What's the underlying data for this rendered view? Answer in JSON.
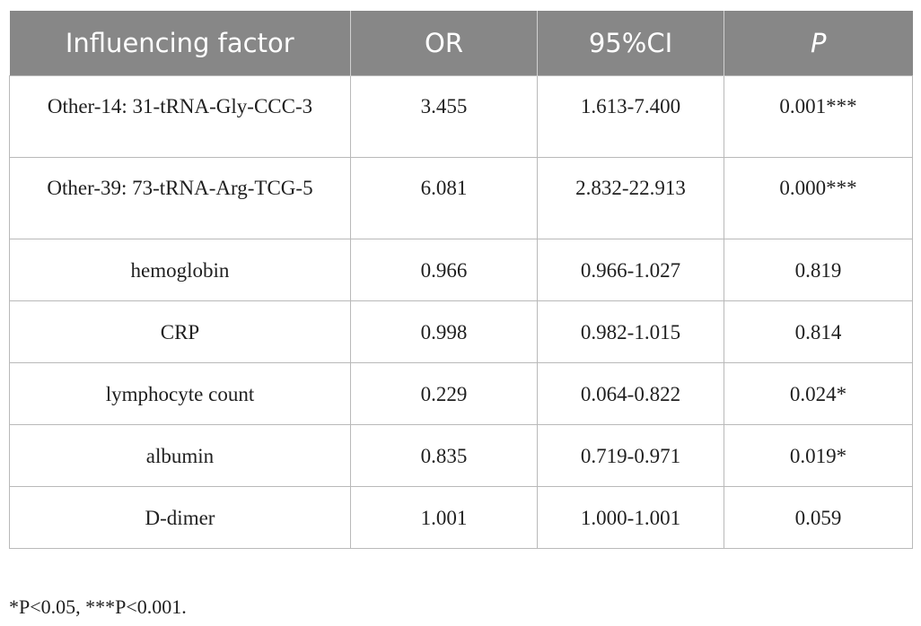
{
  "table": {
    "headers": [
      "Influencing factor",
      "OR",
      "95%CI",
      "P"
    ],
    "rows": [
      {
        "factor": "Other-14: 31-tRNA-Gly-CCC-3",
        "or": "3.455",
        "ci": "1.613-7.400",
        "p": "0.001***"
      },
      {
        "factor": "Other-39: 73-tRNA-Arg-TCG-5",
        "or": "6.081",
        "ci": "2.832-22.913",
        "p": "0.000***"
      },
      {
        "factor": "hemoglobin",
        "or": "0.966",
        "ci": "0.966-1.027",
        "p": "0.819"
      },
      {
        "factor": "CRP",
        "or": "0.998",
        "ci": "0.982-1.015",
        "p": "0.814"
      },
      {
        "factor": "lymphocyte count",
        "or": "0.229",
        "ci": "0.064-0.822",
        "p": "0.024*"
      },
      {
        "factor": "albumin",
        "or": "0.835",
        "ci": "0.719-0.971",
        "p": "0.019*"
      },
      {
        "factor": "D-dimer",
        "or": "1.001",
        "ci": "1.000-1.001",
        "p": "0.059"
      }
    ]
  },
  "footnote": "*P<0.05, ***P<0.001.",
  "colors": {
    "header_bg": "#878787",
    "header_text": "#ffffff",
    "border": "#b9b9b9"
  }
}
